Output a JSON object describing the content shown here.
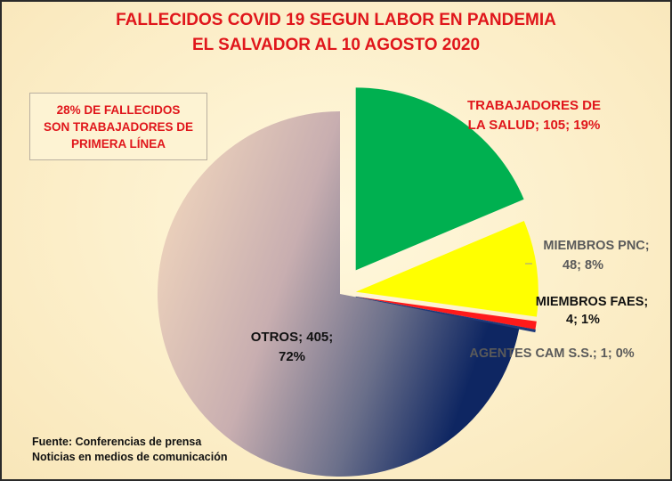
{
  "colors": {
    "title": "#e0161b",
    "salud": "#00b050",
    "pnc": "#ffff00",
    "faes": "#ff1a1a",
    "cam": "#1f3a7a",
    "otros_start": "#f7dcbf",
    "otros_end": "#0e2662",
    "gray_label": "#5a5a5a"
  },
  "chart_data": {
    "type": "pie",
    "title": "FALLECIDOS COVID 19 SEGUN LABOR EN PANDEMIA",
    "subtitle": "EL SALVADOR AL 10 AGOSTO 2020",
    "slices": [
      {
        "name": "TRABAJADORES DE LA SALUD",
        "value": 105,
        "percent": "19%",
        "label_line1": "TRABAJADORES DE",
        "label_line2": "LA SALUD; 105; 19%",
        "exploded": true
      },
      {
        "name": "MIEMBROS PNC",
        "value": 48,
        "percent": "8%",
        "label_line1": "MIEMBROS PNC;",
        "label_line2": "48; 8%",
        "exploded": true
      },
      {
        "name": "MIEMBROS FAES",
        "value": 4,
        "percent": "1%",
        "label_line1": "MIEMBROS FAES;",
        "label_line2": "4; 1%",
        "exploded": true
      },
      {
        "name": "AGENTES CAM S.S.",
        "value": 1,
        "percent": "0%",
        "label_line1": "AGENTES CAM S.S.; 1; 0%",
        "exploded": true
      },
      {
        "name": "OTROS",
        "value": 405,
        "percent": "72%",
        "label_line1": "OTROS; 405;",
        "label_line2": "72%",
        "exploded": false
      }
    ],
    "note": "28% DE FALLECIDOS\nSON TRABAJADORES DE\nPRIMERA LÍNEA",
    "source_line1": "Fuente: Conferencias de prensa",
    "source_line2": "Noticias en medios de comunicación"
  }
}
